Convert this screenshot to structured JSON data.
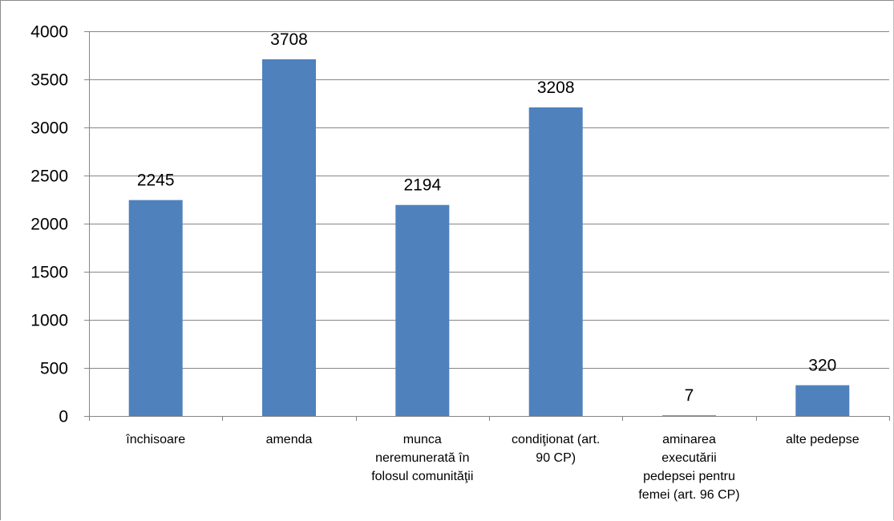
{
  "chart_data": {
    "type": "bar",
    "title": "",
    "xlabel": "",
    "ylabel": "",
    "categories": [
      "închisoare",
      "amenda",
      "munca neremunerată în folosul comunităţii",
      "condiţionat (art. 90 CP)",
      "aminarea executării pedepsei pentru femei (art. 96 CP)",
      "alte pedepse"
    ],
    "category_lines": [
      [
        "închisoare"
      ],
      [
        "amenda"
      ],
      [
        "munca",
        "neremunerată în",
        "folosul comunităţii"
      ],
      [
        "condiţionat (art.",
        "90 CP)"
      ],
      [
        "aminarea",
        "executării",
        "pedepsei pentru",
        "femei (art. 96 CP)"
      ],
      [
        "alte pedepse"
      ]
    ],
    "values": [
      2245,
      3708,
      2194,
      3208,
      7,
      320
    ],
    "data_labels": [
      "2245",
      "3708",
      "2194",
      "3208",
      "7",
      "320"
    ],
    "ylim": [
      0,
      4000
    ],
    "yticks": [
      0,
      500,
      1000,
      1500,
      2000,
      2500,
      3000,
      3500,
      4000
    ],
    "grid": true,
    "legend": "none",
    "bar_color": "#4f81bd",
    "grid_color": "#868686",
    "axis_color": "#868686"
  }
}
